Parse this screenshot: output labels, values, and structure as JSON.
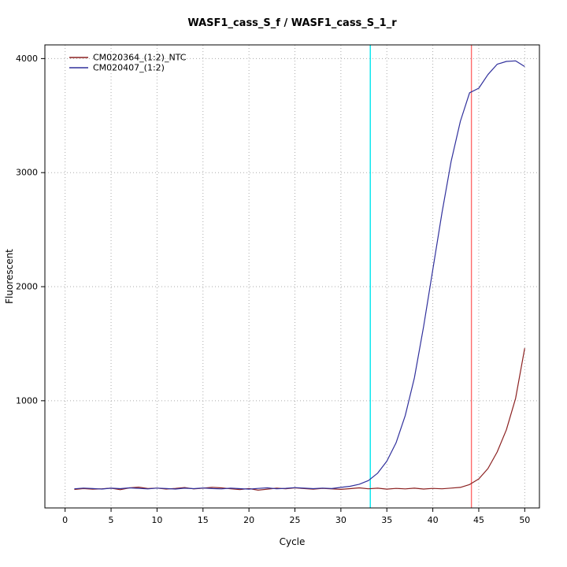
{
  "title": "WASF1_cass_S_f / WASF1_cass_S_1_r",
  "chart_data": {
    "type": "line",
    "title": "WASF1_cass_S_f / WASF1_cass_S_1_r",
    "xlabel": "Cycle",
    "ylabel": "Fluorescent",
    "xlim": [
      -2.2,
      51.6
    ],
    "ylim": [
      60,
      4120
    ],
    "xticks": [
      0,
      5,
      10,
      15,
      20,
      25,
      30,
      35,
      40,
      45,
      50
    ],
    "yticks": [
      1000,
      2000,
      3000,
      4000
    ],
    "grid": true,
    "legend_position": "top-left",
    "colors": {
      "grid": "#aaaaaa",
      "box": "#000000",
      "threshold_line": "#00e5ee",
      "cutoff_line": "#ff6a6a"
    },
    "x": [
      1,
      2,
      3,
      4,
      5,
      6,
      7,
      8,
      9,
      10,
      11,
      12,
      13,
      14,
      15,
      16,
      17,
      18,
      19,
      20,
      21,
      22,
      23,
      24,
      25,
      26,
      27,
      28,
      29,
      30,
      31,
      32,
      33,
      34,
      35,
      36,
      37,
      38,
      39,
      40,
      41,
      42,
      43,
      44,
      45,
      46,
      47,
      48,
      49,
      50
    ],
    "series": [
      {
        "name": "CM020364_(1:2)_NTC",
        "color": "#8b2020",
        "values": [
          222,
          230,
          224,
          228,
          233,
          220,
          236,
          242,
          230,
          234,
          226,
          231,
          239,
          227,
          233,
          241,
          236,
          228,
          221,
          230,
          216,
          224,
          233,
          228,
          236,
          230,
          225,
          232,
          227,
          223,
          229,
          236,
          228,
          233,
          225,
          231,
          227,
          233,
          226,
          231,
          228,
          234,
          240,
          265,
          315,
          405,
          550,
          745,
          1020,
          1460
        ]
      },
      {
        "name": "CM020407_(1:2)",
        "color": "#30309c",
        "values": [
          228,
          234,
          230,
          226,
          233,
          229,
          236,
          231,
          227,
          234,
          230,
          226,
          233,
          229,
          235,
          230,
          227,
          233,
          229,
          225,
          231,
          236,
          228,
          232,
          238,
          233,
          229,
          234,
          230,
          240,
          250,
          268,
          300,
          365,
          470,
          630,
          870,
          1200,
          1650,
          2150,
          2650,
          3100,
          3450,
          3700,
          3740,
          3860,
          3950,
          3975,
          3980,
          3930
        ]
      }
    ],
    "vlines": [
      {
        "x": 33.2,
        "color": "#00e5ee",
        "name": "threshold-cycle-line"
      },
      {
        "x": 44.2,
        "color": "#ff6a6a",
        "name": "cutoff-cycle-line"
      }
    ]
  }
}
